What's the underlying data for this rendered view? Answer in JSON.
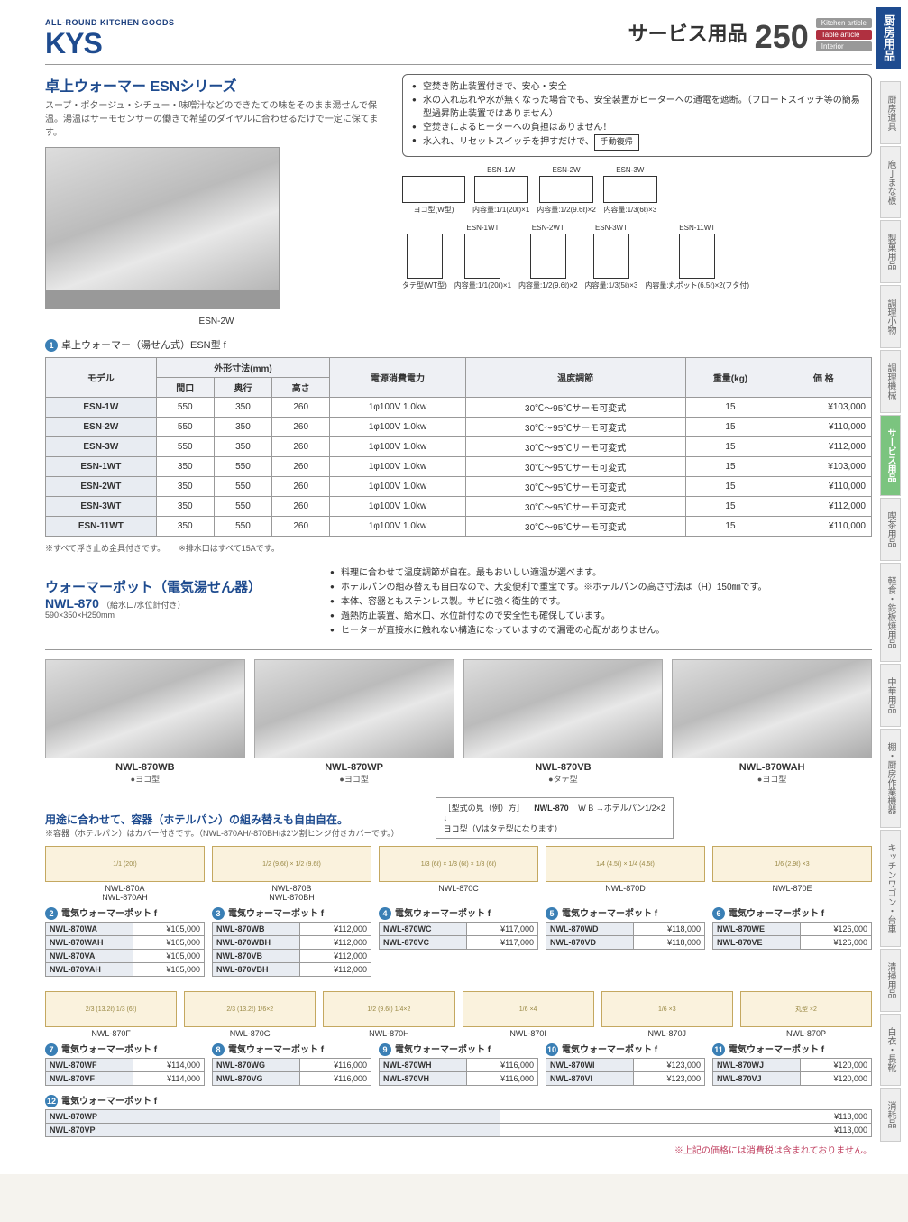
{
  "header": {
    "logo_tag": "ALL-ROUND KITCHEN GOODS",
    "logo_main": "KYS",
    "category": "サービス用品",
    "page_number": "250",
    "tags": [
      "Kitchen article",
      "Table article",
      "Interior"
    ],
    "side_main": "厨房用品"
  },
  "side_tabs": [
    "厨房道具",
    "庖丁まな板",
    "製菓用品",
    "調理小物",
    "調理機械",
    "サービス用品",
    "喫茶用品",
    "軽食・鉄板焼用品",
    "中華用品",
    "棚・厨房作業機器",
    "キッチンワゴン・台車",
    "清掃用品",
    "白衣・長靴",
    "消耗品"
  ],
  "side_active_index": 5,
  "esn": {
    "series_title": "卓上ウォーマー ESNシリーズ",
    "series_desc": "スープ・ポタージュ・シチュー・味噌汁などのできたての味をそのまま湯せんで保温。湯温はサーモセンサーの働きで希望のダイヤルに合わせるだけで一定に保てます。",
    "features": [
      "空焚き防止装置付きで、安心・安全",
      "水の入れ忘れや水が無くなった場合でも、安全装置がヒーターへの通電を遮断。（フロートスイッチ等の簡易型過昇防止装置ではありません）",
      "空焚きによるヒーターへの負担はありません！",
      "水入れ、リセットスイッチを押すだけで、"
    ],
    "manual_label": "手動復帰",
    "img_caption": "ESN-2W",
    "diagram_yoko_label": "ヨコ型(W型)",
    "diagram_tate_label": "タテ型(WT型)",
    "yoko_models": [
      {
        "name": "ESN-1W",
        "cap": "内容量:1/1(20ℓ)×1"
      },
      {
        "name": "ESN-2W",
        "cap": "内容量:1/2(9.6ℓ)×2"
      },
      {
        "name": "ESN-3W",
        "cap": "内容量:1/3(6ℓ)×3"
      }
    ],
    "tate_models": [
      {
        "name": "ESN-1WT",
        "cap": "内容量:1/1(20ℓ)×1"
      },
      {
        "name": "ESN-2WT",
        "cap": "内容量:1/2(9.6ℓ)×2"
      },
      {
        "name": "ESN-3WT",
        "cap": "内容量:1/3(5ℓ)×3"
      },
      {
        "name": "ESN-11WT",
        "cap": "内容量:丸ポット(6.5ℓ)×2(フタ付)"
      }
    ],
    "table_title": "卓上ウォーマー（湯せん式）ESN型 f",
    "columns": [
      "モデル",
      "間口",
      "奥行",
      "高さ",
      "電源消費電力",
      "温度調節",
      "重量(kg)",
      "価 格"
    ],
    "dim_header": "外形寸法(mm)",
    "rows": [
      [
        "ESN-1W",
        "550",
        "350",
        "260",
        "1φ100V 1.0kw",
        "30℃〜95℃サーモ可変式",
        "15",
        "¥103,000"
      ],
      [
        "ESN-2W",
        "550",
        "350",
        "260",
        "1φ100V 1.0kw",
        "30℃〜95℃サーモ可変式",
        "15",
        "¥110,000"
      ],
      [
        "ESN-3W",
        "550",
        "350",
        "260",
        "1φ100V 1.0kw",
        "30℃〜95℃サーモ可変式",
        "15",
        "¥112,000"
      ],
      [
        "ESN-1WT",
        "350",
        "550",
        "260",
        "1φ100V 1.0kw",
        "30℃〜95℃サーモ可変式",
        "15",
        "¥103,000"
      ],
      [
        "ESN-2WT",
        "350",
        "550",
        "260",
        "1φ100V 1.0kw",
        "30℃〜95℃サーモ可変式",
        "15",
        "¥110,000"
      ],
      [
        "ESN-3WT",
        "350",
        "550",
        "260",
        "1φ100V 1.0kw",
        "30℃〜95℃サーモ可変式",
        "15",
        "¥112,000"
      ],
      [
        "ESN-11WT",
        "350",
        "550",
        "260",
        "1φ100V 1.0kw",
        "30℃〜95℃サーモ可変式",
        "15",
        "¥110,000"
      ]
    ],
    "table_note1": "※すべて浮き止め金具付きです。",
    "table_note2": "※排水口はすべて15Aです。"
  },
  "nwl": {
    "title": "ウォーマーポット（電気湯せん器）",
    "model": "NWL-870",
    "sub": "（給水口/水位計付き）",
    "dims": "590×350×H250mm",
    "features": [
      "料理に合わせて温度調節が自在。最もおいしい適温が選べます。",
      "ホテルパンの組み替えも自由なので、大変便利で重宝です。※ホテルパンの高さ寸法は（H）150㎜です。",
      "本体、容器ともステンレス製。サビに強く衛生的です。",
      "過熱防止装置、給水口、水位計付なので安全性も確保しています。",
      "ヒーターが直接水に触れない構造になっていますので漏電の心配がありません。"
    ],
    "products": [
      {
        "name": "NWL-870WB",
        "type": "●ヨコ型"
      },
      {
        "name": "NWL-870WP",
        "type": "●ヨコ型"
      },
      {
        "name": "NWL-870VB",
        "type": "●タテ型"
      },
      {
        "name": "NWL-870WAH",
        "type": "●ヨコ型"
      }
    ],
    "combo_title": "用途に合わせて、容器（ホテルパン）の組み替えも自由自在。",
    "combo_note": "※容器（ホテルパン）はカバー付きです。（NWL-870AH/-870BHは2ツ割ヒンジ付きカバーです。）",
    "legend_title": "［型式の見（例）方］",
    "legend_model": "NWL-870",
    "legend_desc": "W B →ホテルパン1/2×2\n↓\nヨコ型（Vはタテ型になります）",
    "configs_top": [
      {
        "diagram": "1/1 (20ℓ)",
        "labels": "NWL-870A\nNWL-870AH"
      },
      {
        "diagram": "1/2 (9.6ℓ) × 1/2 (9.6ℓ)",
        "labels": "NWL-870B\nNWL-870BH"
      },
      {
        "diagram": "1/3 (6ℓ) × 1/3 (6ℓ) × 1/3 (6ℓ)",
        "labels": "NWL-870C"
      },
      {
        "diagram": "1/4 (4.5ℓ) × 1/4 (4.5ℓ)",
        "labels": "NWL-870D"
      },
      {
        "diagram": "1/6 (2.9ℓ) ×3",
        "labels": "NWL-870E"
      }
    ],
    "price_blocks_top": [
      {
        "num": "2",
        "title": "電気ウォーマーポット f",
        "rows": [
          [
            "NWL-870WA",
            "¥105,000"
          ],
          [
            "NWL-870WAH",
            "¥105,000"
          ],
          [
            "NWL-870VA",
            "¥105,000"
          ],
          [
            "NWL-870VAH",
            "¥105,000"
          ]
        ]
      },
      {
        "num": "3",
        "title": "電気ウォーマーポット f",
        "rows": [
          [
            "NWL-870WB",
            "¥112,000"
          ],
          [
            "NWL-870WBH",
            "¥112,000"
          ],
          [
            "NWL-870VB",
            "¥112,000"
          ],
          [
            "NWL-870VBH",
            "¥112,000"
          ]
        ]
      },
      {
        "num": "4",
        "title": "電気ウォーマーポット f",
        "rows": [
          [
            "NWL-870WC",
            "¥117,000"
          ],
          [
            "NWL-870VC",
            "¥117,000"
          ]
        ]
      },
      {
        "num": "5",
        "title": "電気ウォーマーポット f",
        "rows": [
          [
            "NWL-870WD",
            "¥118,000"
          ],
          [
            "NWL-870VD",
            "¥118,000"
          ]
        ]
      },
      {
        "num": "6",
        "title": "電気ウォーマーポット f",
        "rows": [
          [
            "NWL-870WE",
            "¥126,000"
          ],
          [
            "NWL-870VE",
            "¥126,000"
          ]
        ]
      }
    ],
    "configs_bottom": [
      {
        "diagram": "2/3 (13.2ℓ) 1/3 (6ℓ)",
        "labels": "NWL-870F"
      },
      {
        "diagram": "2/3 (13.2ℓ) 1/6×2",
        "labels": "NWL-870G"
      },
      {
        "diagram": "1/2 (9.6ℓ) 1/4×2",
        "labels": "NWL-870H"
      },
      {
        "diagram": "1/6 ×4",
        "labels": "NWL-870I"
      },
      {
        "diagram": "1/6 ×3",
        "labels": "NWL-870J"
      },
      {
        "diagram": "丸型 ×2",
        "labels": "NWL-870P"
      }
    ],
    "price_blocks_bottom": [
      {
        "num": "7",
        "title": "電気ウォーマーポット f",
        "rows": [
          [
            "NWL-870WF",
            "¥114,000"
          ],
          [
            "NWL-870VF",
            "¥114,000"
          ]
        ]
      },
      {
        "num": "8",
        "title": "電気ウォーマーポット f",
        "rows": [
          [
            "NWL-870WG",
            "¥116,000"
          ],
          [
            "NWL-870VG",
            "¥116,000"
          ]
        ]
      },
      {
        "num": "9",
        "title": "電気ウォーマーポット f",
        "rows": [
          [
            "NWL-870WH",
            "¥116,000"
          ],
          [
            "NWL-870VH",
            "¥116,000"
          ]
        ]
      },
      {
        "num": "10",
        "title": "電気ウォーマーポット f",
        "rows": [
          [
            "NWL-870WI",
            "¥123,000"
          ],
          [
            "NWL-870VI",
            "¥123,000"
          ]
        ]
      },
      {
        "num": "11",
        "title": "電気ウォーマーポット f",
        "rows": [
          [
            "NWL-870WJ",
            "¥120,000"
          ],
          [
            "NWL-870VJ",
            "¥120,000"
          ]
        ]
      },
      {
        "num": "12",
        "title": "電気ウォーマーポット f",
        "rows": [
          [
            "NWL-870WP",
            "¥113,000"
          ],
          [
            "NWL-870VP",
            "¥113,000"
          ]
        ]
      }
    ]
  },
  "footer_note": "※上記の価格には消費税は含まれておりません。"
}
